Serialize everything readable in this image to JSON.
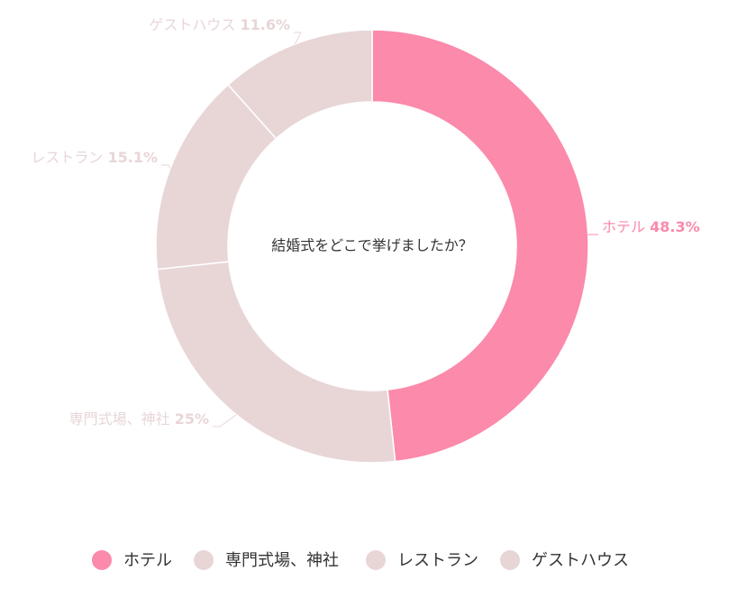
{
  "chart_data": {
    "type": "donut",
    "title": "結婚式をどこで挙げましたか？",
    "categories": [
      "ホテル",
      "専門式場、神社",
      "レストラン",
      "ゲストハウス"
    ],
    "values": [
      48.3,
      25,
      15.1,
      11.6
    ],
    "value_labels": [
      "48.3%",
      "25%",
      "15.1%",
      "11.6%"
    ],
    "colors": [
      "#fb8aab",
      "#e8d6d7",
      "#e8d6d7",
      "#e8d6d7"
    ],
    "legend": "bottom"
  }
}
